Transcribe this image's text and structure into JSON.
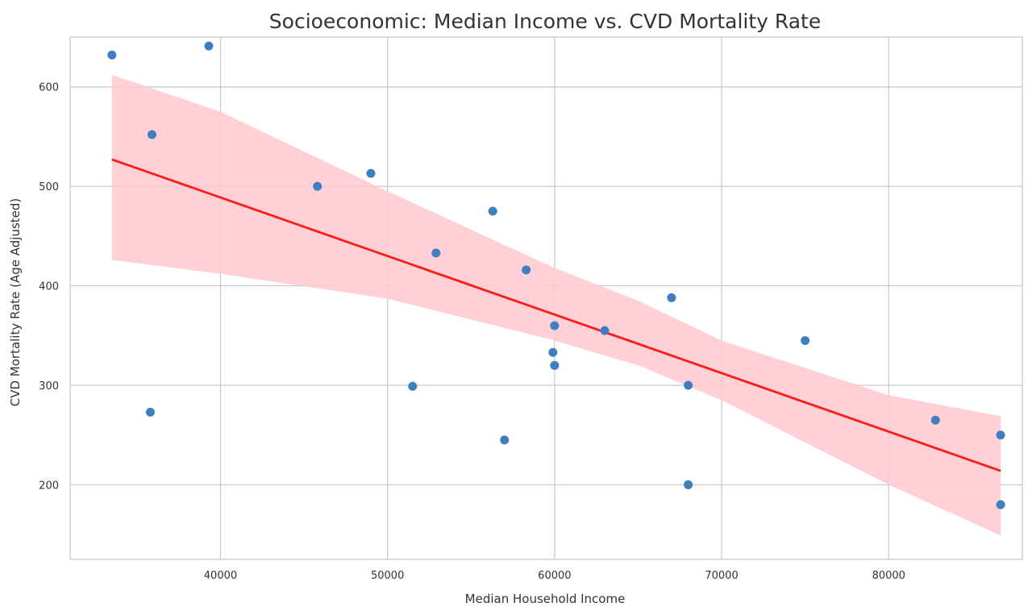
{
  "chart_data": {
    "type": "scatter",
    "title": "Socioeconomic: Median Income vs. CVD Mortality Rate",
    "xlabel": "Median Household Income",
    "ylabel": "CVD Mortality Rate (Age Adjusted)",
    "xlim": [
      31000,
      88000
    ],
    "ylim": [
      125,
      650
    ],
    "x_ticks": [
      40000,
      50000,
      60000,
      70000,
      80000
    ],
    "y_ticks": [
      200,
      300,
      400,
      500,
      600
    ],
    "x_tick_labels": [
      "40000",
      "50000",
      "60000",
      "70000",
      "80000"
    ],
    "y_tick_labels": [
      "200",
      "300",
      "400",
      "500",
      "600"
    ],
    "grid": true,
    "legend": "none",
    "colors": {
      "points": "#3f7fbf",
      "line": "#ff1a1a",
      "band": "#ffc9cf",
      "grid": "#c8c8c8",
      "spine": "#cfcfcf",
      "text": "#333333"
    },
    "points": [
      {
        "x": 33500,
        "y": 632
      },
      {
        "x": 35900,
        "y": 552
      },
      {
        "x": 35800,
        "y": 273
      },
      {
        "x": 39300,
        "y": 641
      },
      {
        "x": 45800,
        "y": 500
      },
      {
        "x": 49000,
        "y": 513
      },
      {
        "x": 51500,
        "y": 299
      },
      {
        "x": 52900,
        "y": 433
      },
      {
        "x": 56300,
        "y": 475
      },
      {
        "x": 57000,
        "y": 245
      },
      {
        "x": 58300,
        "y": 416
      },
      {
        "x": 59900,
        "y": 333
      },
      {
        "x": 60000,
        "y": 360
      },
      {
        "x": 60000,
        "y": 320
      },
      {
        "x": 63000,
        "y": 355
      },
      {
        "x": 67000,
        "y": 388
      },
      {
        "x": 68000,
        "y": 300
      },
      {
        "x": 68000,
        "y": 200
      },
      {
        "x": 75000,
        "y": 345
      },
      {
        "x": 82800,
        "y": 265
      },
      {
        "x": 86700,
        "y": 250
      },
      {
        "x": 86700,
        "y": 180
      }
    ],
    "regression": {
      "x": [
        33500,
        86700
      ],
      "y": [
        527,
        214
      ]
    },
    "confidence_band": {
      "x": [
        33500,
        40000,
        50000,
        60000,
        65000,
        70000,
        80000,
        86700
      ],
      "upper": [
        612,
        575,
        495,
        418,
        385,
        345,
        290,
        269
      ],
      "lower": [
        426,
        412,
        387,
        345,
        320,
        285,
        200,
        149
      ]
    }
  }
}
